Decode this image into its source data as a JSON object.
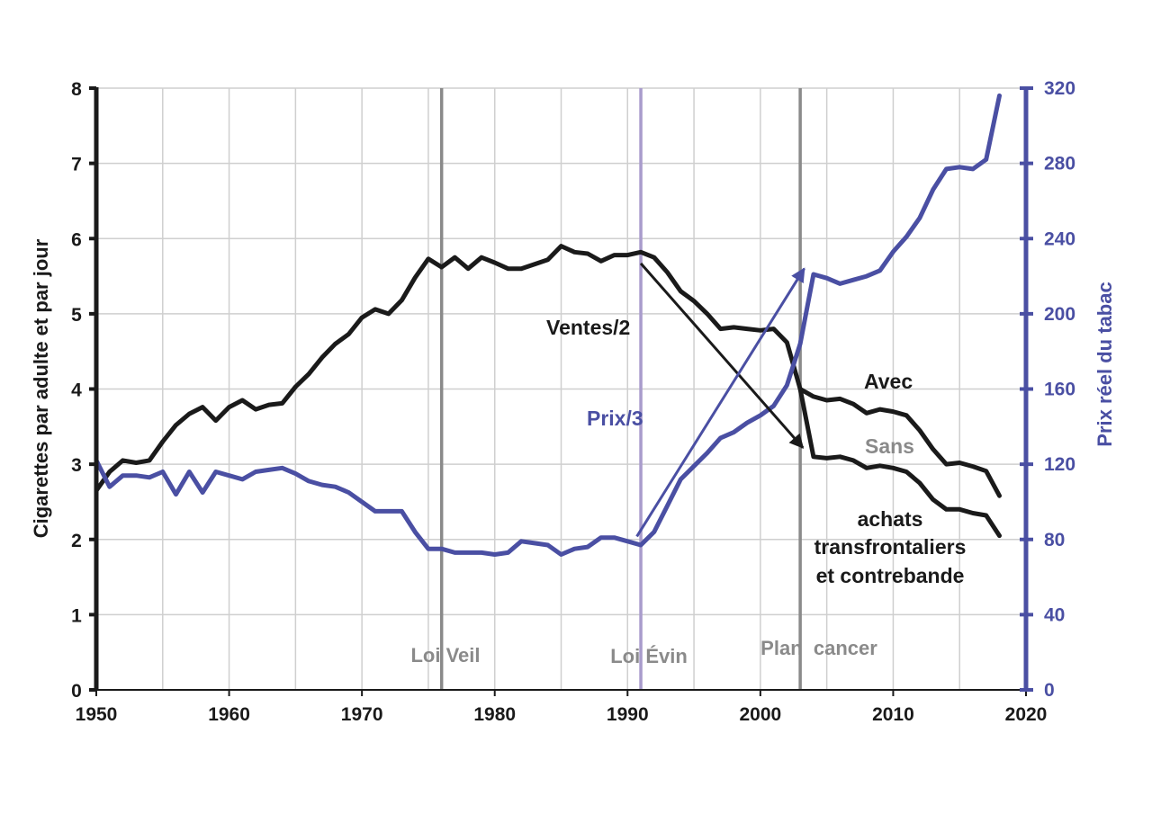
{
  "chart_data": {
    "type": "line",
    "title": "",
    "xlabel": "",
    "ylabel": "Cigarettes par adulte et par jour",
    "ylabel_right": "Prix réel du tabac",
    "xlim": [
      1950,
      2020
    ],
    "ylim": [
      0,
      8
    ],
    "ylim_right": [
      0,
      320
    ],
    "grid": true,
    "x_ticks": [
      "1950",
      "1960",
      "1970",
      "1980",
      "1990",
      "2000",
      "2010",
      "2020"
    ],
    "y_ticks": [
      "0",
      "1",
      "2",
      "3",
      "4",
      "5",
      "6",
      "7",
      "8"
    ],
    "y_ticks_right": [
      "0",
      "40",
      "80",
      "120",
      "160",
      "200",
      "240",
      "280",
      "320"
    ],
    "colors": {
      "ventes": "#1a1a1a",
      "prix": "#4a4fa3",
      "grid": "#cfcfcf",
      "event_gray": "#8a8a8a",
      "event_purple": "#a99ccc",
      "sans_label": "#8a8a8a"
    },
    "series": [
      {
        "name": "Ventes/2 (avec achats transfrontaliers et contrebande)",
        "axis": "left",
        "x": [
          1950,
          1951,
          1952,
          1953,
          1954,
          1955,
          1956,
          1957,
          1958,
          1959,
          1960,
          1961,
          1962,
          1963,
          1964,
          1965,
          1966,
          1967,
          1968,
          1969,
          1970,
          1971,
          1972,
          1973,
          1974,
          1975,
          1976,
          1977,
          1978,
          1979,
          1980,
          1981,
          1982,
          1983,
          1984,
          1985,
          1986,
          1987,
          1988,
          1989,
          1990,
          1991,
          1992,
          1993,
          1994,
          1995,
          1996,
          1997,
          1998,
          1999,
          2000,
          2001,
          2002,
          2003,
          2004,
          2005,
          2006,
          2007,
          2008,
          2009,
          2010,
          2011,
          2012,
          2013,
          2014,
          2015,
          2016,
          2017,
          2018
        ],
        "values": [
          2.65,
          2.9,
          3.05,
          3.02,
          3.05,
          3.3,
          3.52,
          3.67,
          3.76,
          3.58,
          3.76,
          3.85,
          3.73,
          3.79,
          3.81,
          4.03,
          4.2,
          4.42,
          4.6,
          4.73,
          4.95,
          5.06,
          5.0,
          5.18,
          5.48,
          5.73,
          5.62,
          5.75,
          5.6,
          5.75,
          5.68,
          5.6,
          5.6,
          5.66,
          5.72,
          5.9,
          5.82,
          5.8,
          5.7,
          5.78,
          5.78,
          5.82,
          5.75,
          5.55,
          5.3,
          5.17,
          5.0,
          4.8,
          4.82,
          4.8,
          4.78,
          4.8,
          4.62,
          4.0,
          3.9,
          3.85,
          3.87,
          3.8,
          3.68,
          3.73,
          3.7,
          3.65,
          3.45,
          3.2,
          3.0,
          3.02,
          2.97,
          2.91,
          2.58
        ]
      },
      {
        "name": "Ventes/2 (sans achats transfrontaliers et contrebande)",
        "axis": "left",
        "x": [
          2003,
          2004,
          2005,
          2006,
          2007,
          2008,
          2009,
          2010,
          2011,
          2012,
          2013,
          2014,
          2015,
          2016,
          2017,
          2018
        ],
        "values": [
          4.0,
          3.1,
          3.08,
          3.1,
          3.05,
          2.95,
          2.98,
          2.95,
          2.9,
          2.75,
          2.53,
          2.4,
          2.4,
          2.35,
          2.32,
          2.05
        ]
      },
      {
        "name": "Prix réel du tabac",
        "axis": "right",
        "x": [
          1950,
          1951,
          1952,
          1953,
          1954,
          1955,
          1956,
          1957,
          1958,
          1959,
          1960,
          1961,
          1962,
          1963,
          1964,
          1965,
          1966,
          1967,
          1968,
          1969,
          1970,
          1971,
          1972,
          1973,
          1974,
          1975,
          1976,
          1977,
          1978,
          1979,
          1980,
          1981,
          1982,
          1983,
          1984,
          1985,
          1986,
          1987,
          1988,
          1989,
          1990,
          1991,
          1992,
          1993,
          1994,
          1995,
          1996,
          1997,
          1998,
          1999,
          2000,
          2001,
          2002,
          2003,
          2004,
          2005,
          2006,
          2007,
          2008,
          2009,
          2010,
          2011,
          2012,
          2013,
          2014,
          2015,
          2016,
          2017,
          2018
        ],
        "values": [
          122,
          108,
          114,
          114,
          113,
          116,
          104,
          116,
          105,
          116,
          114,
          112,
          116,
          117,
          118,
          115,
          111,
          109,
          108,
          105,
          100,
          95,
          95,
          95,
          84,
          75,
          75,
          73,
          73,
          73,
          72,
          73,
          79,
          78,
          77,
          72,
          75,
          76,
          81,
          81,
          79,
          77,
          84,
          98,
          112,
          119,
          126,
          134,
          137,
          142,
          146,
          151,
          162,
          184,
          221,
          219,
          216,
          218,
          220,
          223,
          233,
          241,
          251,
          266,
          277,
          278,
          277,
          282,
          316
        ]
      }
    ],
    "events": [
      {
        "year": 1976,
        "label": "Loi Veil",
        "style": "gray"
      },
      {
        "year": 1991,
        "label": "Loi Évin",
        "style": "purple"
      },
      {
        "year": 2003,
        "label": "Plan  cancer",
        "style": "gray"
      }
    ],
    "arrows": [
      {
        "name": "ventes-trend",
        "from": [
          1991,
          5.67
        ],
        "to": [
          2003.2,
          3.22
        ],
        "axis": "left"
      },
      {
        "name": "prix-trend",
        "from": [
          1990.7,
          2.04
        ],
        "to": [
          2003.3,
          5.6
        ],
        "axis": "left"
      }
    ],
    "annotations": {
      "ventes": "Ventes/2",
      "prix": "Prix/3",
      "avec": "Avec",
      "sans": "Sans",
      "note_line1": "achats",
      "note_line2": "transfrontaliers",
      "note_line3": "et contrebande"
    }
  }
}
